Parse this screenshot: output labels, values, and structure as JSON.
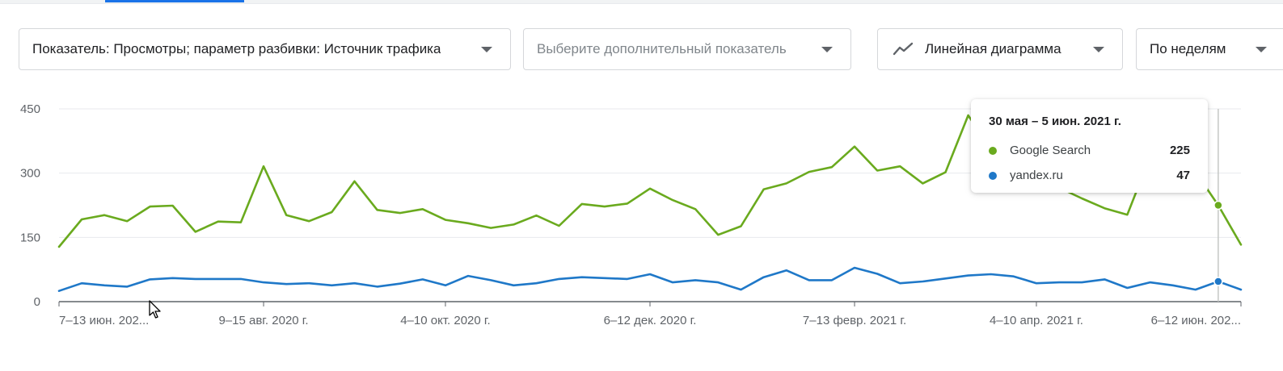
{
  "controls": {
    "metric_label": "Показатель: Просмотры; параметр разбивки: Источник трафика",
    "secondary_placeholder": "Выберите дополнительный показатель",
    "chart_type_label": "Линейная диаграмма",
    "period_label": "По неделям"
  },
  "tooltip": {
    "title": "30 мая – 5 июн. 2021 г.",
    "rows": [
      {
        "name": "Google Search",
        "value": "225",
        "color": "#6aaa1e"
      },
      {
        "name": "yandex.ru",
        "value": "47",
        "color": "#1f78c8"
      }
    ]
  },
  "colors": {
    "google": "#6aaa1e",
    "yandex": "#1f78c8",
    "grid": "#e8eaed",
    "axis": "#5f6368"
  },
  "icons": {
    "chart_type": "line-chart-icon",
    "dropdown": "caret-down-icon"
  },
  "chart_data": {
    "type": "line",
    "ylim": [
      0,
      450
    ],
    "yticks": [
      0,
      150,
      300,
      450
    ],
    "xtick_labels": [
      {
        "index": 0,
        "label": "7–13 июн. 202..."
      },
      {
        "index": 9,
        "label": "9–15 авг. 2020 г."
      },
      {
        "index": 17,
        "label": "4–10 окт. 2020 г."
      },
      {
        "index": 26,
        "label": "6–12 дек. 2020 г."
      },
      {
        "index": 35,
        "label": "7–13 февр. 2021 г."
      },
      {
        "index": 43,
        "label": "4–10 апр. 2021 г."
      },
      {
        "index": 52,
        "label": "6–12 июн. 202..."
      }
    ],
    "highlight_index": 51,
    "series": [
      {
        "name": "Google Search",
        "color": "#6aaa1e",
        "values": [
          128,
          192,
          202,
          188,
          222,
          224,
          163,
          187,
          185,
          316,
          202,
          188,
          209,
          281,
          214,
          207,
          216,
          191,
          183,
          172,
          180,
          201,
          177,
          228,
          222,
          229,
          264,
          237,
          216,
          156,
          176,
          262,
          276,
          303,
          314,
          362,
          306,
          316,
          276,
          302,
          435,
          356,
          316,
          283,
          266,
          241,
          218,
          203,
          338,
          343,
          303,
          225,
          133
        ]
      },
      {
        "name": "yandex.ru",
        "color": "#1f78c8",
        "values": [
          25,
          43,
          38,
          35,
          52,
          55,
          53,
          53,
          53,
          45,
          41,
          43,
          38,
          43,
          35,
          42,
          52,
          38,
          60,
          50,
          38,
          43,
          53,
          57,
          55,
          53,
          64,
          45,
          50,
          45,
          28,
          57,
          73,
          50,
          50,
          79,
          65,
          43,
          47,
          54,
          61,
          64,
          59,
          43,
          45,
          45,
          52,
          32,
          45,
          38,
          28,
          47,
          28
        ]
      }
    ]
  }
}
